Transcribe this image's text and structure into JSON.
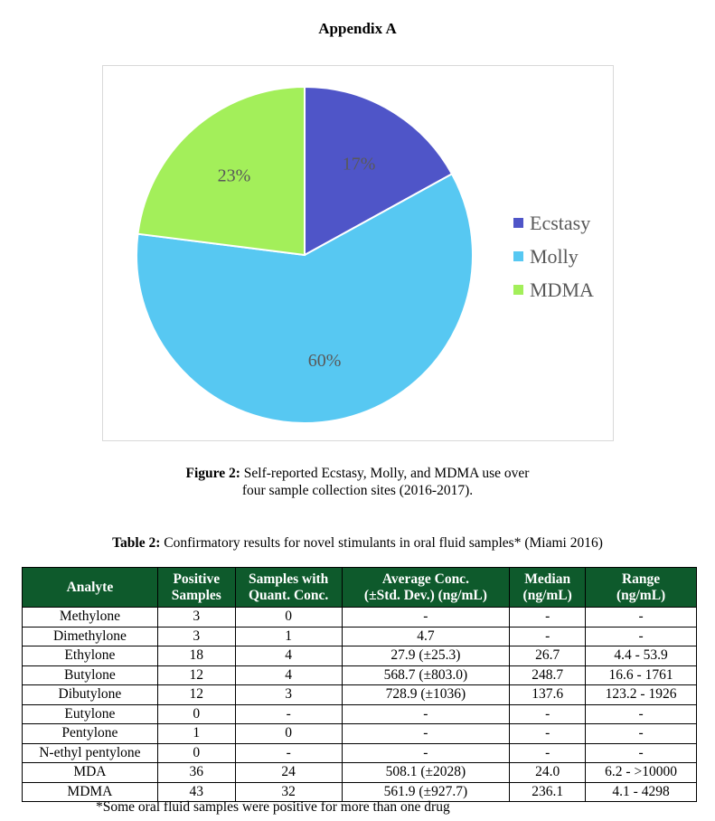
{
  "appendix_title": "Appendix A",
  "chart_data": {
    "type": "pie",
    "categories": [
      "Ecstasy",
      "Molly",
      "MDMA"
    ],
    "values": [
      17,
      60,
      23
    ],
    "labels": [
      "17%",
      "60%",
      "23%"
    ],
    "colors": [
      "#4f55c8",
      "#57c8f2",
      "#a3ef5a"
    ],
    "legend_placement": "right",
    "label_color": "#595959"
  },
  "figure_caption": {
    "label": "Figure 2:",
    "line1": " Self-reported Ecstasy, Molly, and MDMA use over",
    "line2": "four sample collection sites (2016-2017)."
  },
  "table_caption": {
    "label": "Table 2:",
    "text": " Confirmatory results for novel stimulants in oral fluid samples* (Miami 2016)"
  },
  "table": {
    "headers": [
      [
        "Analyte"
      ],
      [
        "Positive",
        "Samples"
      ],
      [
        "Samples with",
        "Quant. Conc."
      ],
      [
        "Average Conc.",
        "(±Std. Dev.) (ng/mL)"
      ],
      [
        "Median",
        "(ng/mL)"
      ],
      [
        "Range",
        "(ng/mL)"
      ]
    ],
    "rows": [
      [
        "Methylone",
        "3",
        "0",
        "-",
        "-",
        "-"
      ],
      [
        "Dimethylone",
        "3",
        "1",
        "4.7",
        "-",
        "-"
      ],
      [
        "Ethylone",
        "18",
        "4",
        "27.9 (±25.3)",
        "26.7",
        "4.4 - 53.9"
      ],
      [
        "Butylone",
        "12",
        "4",
        "568.7 (±803.0)",
        "248.7",
        "16.6 - 1761"
      ],
      [
        "Dibutylone",
        "12",
        "3",
        "728.9 (±1036)",
        "137.6",
        "123.2 - 1926"
      ],
      [
        "Eutylone",
        "0",
        "-",
        "-",
        "-",
        "-"
      ],
      [
        "Pentylone",
        "1",
        "0",
        "-",
        "-",
        "-"
      ],
      [
        "N-ethyl pentylone",
        "0",
        "-",
        "-",
        "-",
        "-"
      ],
      [
        "MDA",
        "36",
        "24",
        "508.1 (±2028)",
        "24.0",
        "6.2 - >10000"
      ],
      [
        "MDMA",
        "43",
        "32",
        "561.9 (±927.7)",
        "236.1",
        "4.1 - 4298"
      ]
    ],
    "header_color": "#0e5a2c"
  },
  "footnote": "*Some oral fluid samples were positive for more than one drug"
}
